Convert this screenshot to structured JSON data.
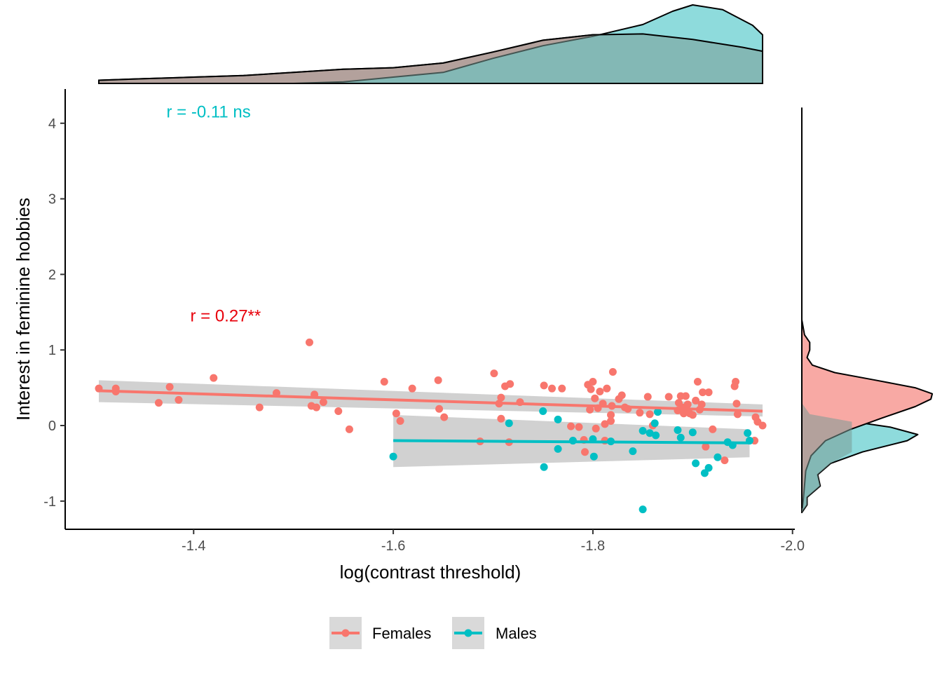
{
  "chart_data": {
    "type": "scatter",
    "subtype": "marginal-density-scatter",
    "xlabel": "log(contrast threshold)",
    "ylabel": "Interest in feminine hobbies",
    "x_reversed": true,
    "xlim": [
      -1.27,
      -2.0
    ],
    "ylim": [
      -1.38,
      4.45
    ],
    "x_ticks": [
      -1.4,
      -1.6,
      -1.8,
      -2.0
    ],
    "x_tick_labels": [
      "-1.4",
      "-1.6",
      "-1.8",
      "-2.0"
    ],
    "y_ticks": [
      -1,
      0,
      1,
      2,
      3,
      4
    ],
    "y_tick_labels": [
      "-1",
      "0",
      "1",
      "2",
      "3",
      "4"
    ],
    "grid": false,
    "legend_position": "bottom",
    "series": [
      {
        "name": "Females",
        "color": "#F8766D",
        "fill_color": "#F8A9A4",
        "points": [
          [
            -1.305,
            0.49
          ],
          [
            -1.322,
            0.49
          ],
          [
            -1.322,
            0.45
          ],
          [
            -1.365,
            0.3
          ],
          [
            -1.376,
            0.51
          ],
          [
            -1.385,
            0.34
          ],
          [
            -1.42,
            0.63
          ],
          [
            -1.466,
            0.24
          ],
          [
            -1.483,
            0.43
          ],
          [
            -1.516,
            1.1
          ],
          [
            -1.518,
            0.26
          ],
          [
            -1.521,
            0.41
          ],
          [
            -1.523,
            0.24
          ],
          [
            -1.53,
            0.31
          ],
          [
            -1.545,
            0.19
          ],
          [
            -1.556,
            -0.05
          ],
          [
            -1.591,
            0.58
          ],
          [
            -1.603,
            0.16
          ],
          [
            -1.607,
            0.06
          ],
          [
            -1.619,
            0.49
          ],
          [
            -1.645,
            0.6
          ],
          [
            -1.646,
            0.22
          ],
          [
            -1.651,
            0.11
          ],
          [
            -1.687,
            -0.21
          ],
          [
            -1.701,
            0.69
          ],
          [
            -1.706,
            0.29
          ],
          [
            -1.708,
            0.37
          ],
          [
            -1.708,
            0.09
          ],
          [
            -1.712,
            0.52
          ],
          [
            -1.716,
            -0.22
          ],
          [
            -1.717,
            0.55
          ],
          [
            -1.727,
            0.31
          ],
          [
            -1.751,
            0.53
          ],
          [
            -1.759,
            0.49
          ],
          [
            -1.769,
            0.49
          ],
          [
            -1.778,
            -0.01
          ],
          [
            -1.786,
            -0.02
          ],
          [
            -1.791,
            -0.19
          ],
          [
            -1.792,
            -0.35
          ],
          [
            -1.795,
            0.54
          ],
          [
            -1.797,
            0.21
          ],
          [
            -1.798,
            0.48
          ],
          [
            -1.8,
            0.58
          ],
          [
            -1.802,
            0.36
          ],
          [
            -1.803,
            -0.04
          ],
          [
            -1.805,
            0.23
          ],
          [
            -1.807,
            0.45
          ],
          [
            -1.81,
            0.29
          ],
          [
            -1.812,
            -0.2
          ],
          [
            -1.812,
            0.02
          ],
          [
            -1.814,
            0.49
          ],
          [
            -1.818,
            0.06
          ],
          [
            -1.818,
            0.14
          ],
          [
            -1.819,
            0.26
          ],
          [
            -1.82,
            0.71
          ],
          [
            -1.826,
            0.35
          ],
          [
            -1.829,
            0.4
          ],
          [
            -1.832,
            0.24
          ],
          [
            -1.835,
            0.22
          ],
          [
            -1.847,
            0.17
          ],
          [
            -1.855,
            0.38
          ],
          [
            -1.857,
            0.15
          ],
          [
            -1.86,
            0.0
          ],
          [
            -1.876,
            0.38
          ],
          [
            -1.885,
            0.2
          ],
          [
            -1.886,
            0.3
          ],
          [
            -1.888,
            0.39
          ],
          [
            -1.89,
            0.24
          ],
          [
            -1.891,
            0.16
          ],
          [
            -1.893,
            0.39
          ],
          [
            -1.894,
            0.2
          ],
          [
            -1.895,
            0.28
          ],
          [
            -1.897,
            0.16
          ],
          [
            -1.9,
            0.14
          ],
          [
            -1.903,
            0.33
          ],
          [
            -1.905,
            0.58
          ],
          [
            -1.907,
            0.21
          ],
          [
            -1.909,
            0.28
          ],
          [
            -1.91,
            0.44
          ],
          [
            -1.913,
            -0.28
          ],
          [
            -1.916,
            0.44
          ],
          [
            -1.92,
            -0.05
          ],
          [
            -1.932,
            -0.46
          ],
          [
            -1.942,
            0.52
          ],
          [
            -1.943,
            0.58
          ],
          [
            -1.944,
            0.29
          ],
          [
            -1.945,
            0.15
          ],
          [
            -1.962,
            -0.2
          ],
          [
            -1.963,
            0.11
          ],
          [
            -1.965,
            0.05
          ],
          [
            -1.97,
            0.0
          ]
        ],
        "fit": {
          "x": [
            -1.305,
            -1.97
          ],
          "y": [
            0.46,
            0.19
          ],
          "ci_low": [
            0.31,
            0.12
          ],
          "ci_high": [
            0.6,
            0.28
          ]
        },
        "x_density": [
          [
            -1.305,
            0.04
          ],
          [
            -1.35,
            0.06
          ],
          [
            -1.4,
            0.08
          ],
          [
            -1.45,
            0.1
          ],
          [
            -1.5,
            0.14
          ],
          [
            -1.55,
            0.18
          ],
          [
            -1.6,
            0.2
          ],
          [
            -1.65,
            0.26
          ],
          [
            -1.7,
            0.4
          ],
          [
            -1.75,
            0.55
          ],
          [
            -1.8,
            0.62
          ],
          [
            -1.85,
            0.63
          ],
          [
            -1.9,
            0.56
          ],
          [
            -1.95,
            0.46
          ],
          [
            -1.97,
            0.41
          ]
        ],
        "y_density": [
          [
            -1.15,
            0.0
          ],
          [
            -1.0,
            0.01
          ],
          [
            -0.8,
            0.02
          ],
          [
            -0.6,
            0.03
          ],
          [
            -0.4,
            0.07
          ],
          [
            -0.2,
            0.18
          ],
          [
            -0.05,
            0.37
          ],
          [
            0.1,
            0.61
          ],
          [
            0.25,
            0.86
          ],
          [
            0.35,
            0.98
          ],
          [
            0.42,
            0.99
          ],
          [
            0.5,
            0.86
          ],
          [
            0.6,
            0.56
          ],
          [
            0.7,
            0.25
          ],
          [
            0.8,
            0.08
          ],
          [
            0.9,
            0.04
          ],
          [
            1.0,
            0.06
          ],
          [
            1.1,
            0.06
          ],
          [
            1.2,
            0.02
          ],
          [
            1.4,
            0.0
          ],
          [
            4.2,
            0.0
          ]
        ]
      },
      {
        "name": "Males",
        "color": "#00BFC4",
        "fill_color": "#8EDBDC",
        "points": [
          [
            -1.6,
            -0.41
          ],
          [
            -1.716,
            0.03
          ],
          [
            -1.75,
            0.19
          ],
          [
            -1.751,
            -0.55
          ],
          [
            -1.765,
            -0.31
          ],
          [
            -1.765,
            0.08
          ],
          [
            -1.78,
            -0.2
          ],
          [
            -1.8,
            -0.18
          ],
          [
            -1.801,
            -0.41
          ],
          [
            -1.818,
            -0.21
          ],
          [
            -1.84,
            -0.34
          ],
          [
            -1.85,
            -0.07
          ],
          [
            -1.85,
            -1.11
          ],
          [
            -1.857,
            -0.1
          ],
          [
            -1.862,
            0.03
          ],
          [
            -1.863,
            -0.13
          ],
          [
            -1.865,
            0.18
          ],
          [
            -1.885,
            -0.06
          ],
          [
            -1.888,
            -0.16
          ],
          [
            -1.9,
            -0.09
          ],
          [
            -1.903,
            -0.5
          ],
          [
            -1.912,
            -0.63
          ],
          [
            -1.916,
            -0.56
          ],
          [
            -1.925,
            -0.42
          ],
          [
            -1.935,
            -0.22
          ],
          [
            -1.94,
            -0.26
          ],
          [
            -1.955,
            -0.1
          ],
          [
            -1.957,
            -0.2
          ]
        ],
        "fit": {
          "x": [
            -1.6,
            -1.957
          ],
          "y": [
            -0.2,
            -0.23
          ],
          "ci_low": [
            -0.55,
            -0.42
          ],
          "ci_high": [
            0.14,
            -0.05
          ]
        },
        "x_density": [
          [
            -1.305,
            0.0
          ],
          [
            -1.5,
            0.0
          ],
          [
            -1.55,
            0.02
          ],
          [
            -1.6,
            0.08
          ],
          [
            -1.65,
            0.14
          ],
          [
            -1.7,
            0.32
          ],
          [
            -1.75,
            0.48
          ],
          [
            -1.8,
            0.6
          ],
          [
            -1.85,
            0.75
          ],
          [
            -1.88,
            0.92
          ],
          [
            -1.9,
            1.0
          ],
          [
            -1.93,
            0.94
          ],
          [
            -1.96,
            0.74
          ],
          [
            -1.97,
            0.62
          ]
        ],
        "y_density": [
          [
            -1.15,
            0.0
          ],
          [
            -1.05,
            0.04
          ],
          [
            -0.95,
            0.04
          ],
          [
            -0.8,
            0.14
          ],
          [
            -0.65,
            0.12
          ],
          [
            -0.5,
            0.22
          ],
          [
            -0.35,
            0.46
          ],
          [
            -0.2,
            0.8
          ],
          [
            -0.12,
            0.88
          ],
          [
            -0.02,
            0.67
          ],
          [
            0.05,
            0.39
          ],
          [
            0.15,
            0.06
          ],
          [
            0.3,
            0.0
          ],
          [
            0.5,
            0.0
          ],
          [
            1.0,
            0.0
          ],
          [
            4.2,
            0.0
          ]
        ]
      }
    ],
    "annotations": [
      {
        "text": "r = -0.11 ns",
        "x": -1.415,
        "y": 4.15,
        "color": "#00BFC4"
      },
      {
        "text": "r = 0.27**",
        "x": -1.432,
        "y": 1.45,
        "color": "#E8000B"
      }
    ]
  }
}
